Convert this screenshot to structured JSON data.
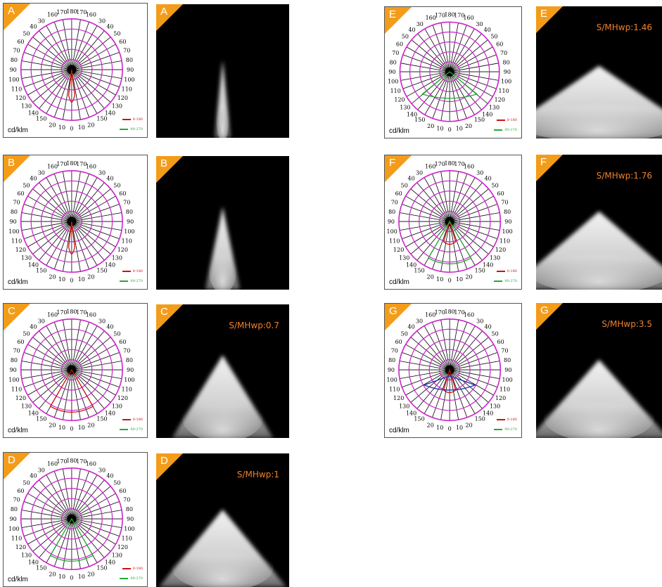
{
  "colors": {
    "tag": "#f39c1a",
    "grid_circle": "#cc22cc",
    "grid_ray": "#000000",
    "curve_0_180": "#cc1111",
    "curve_90_270": "#22aa33",
    "curve_extra": "#2233aa",
    "smh_text": "#f0802a"
  },
  "polar": {
    "unit": "cd/klm",
    "legend_0_180": "0-180",
    "legend_90_270": "90-270",
    "angle_labels_top": [
      "160",
      "170",
      "180",
      "170",
      "160"
    ],
    "angle_labels_left": [
      "150",
      "140",
      "130",
      "120",
      "110",
      "100",
      "90",
      "80",
      "70",
      "60",
      "50",
      "40",
      "30"
    ],
    "angle_labels_right": [
      "150",
      "140",
      "130",
      "120",
      "110",
      "100",
      "90",
      "80",
      "70",
      "60",
      "50",
      "40",
      "30"
    ],
    "angle_labels_bottom": [
      "20",
      "10",
      "0",
      "10",
      "20"
    ]
  },
  "panels": [
    {
      "letter": "A",
      "smh": "",
      "spread": 0.06,
      "length": 0.58,
      "curve_0_180": "narrow",
      "curve_90_270": "none"
    },
    {
      "letter": "B",
      "smh": "",
      "spread": 0.13,
      "length": 0.62,
      "curve_0_180": "narrow",
      "curve_90_270": "none"
    },
    {
      "letter": "C",
      "smh": "S/MHwp:0.7",
      "spread": 0.38,
      "length": 0.62,
      "curve_0_180": "wide",
      "curve_90_270": "none"
    },
    {
      "letter": "D",
      "smh": "S/MHwp:1",
      "spread": 0.48,
      "length": 0.58,
      "curve_0_180": "none",
      "curve_90_270": "wide"
    },
    {
      "letter": "E",
      "smh": "S/MHwp:1.46",
      "spread": 0.85,
      "length": 0.55,
      "curve_0_180": "none",
      "curve_90_270": "fan"
    },
    {
      "letter": "F",
      "smh": "S/MHwp:1.76",
      "spread": 0.72,
      "length": 0.58,
      "curve_0_180": "small",
      "curve_90_270": "wide"
    },
    {
      "letter": "G",
      "smh": "S/MHwp:3.5",
      "spread": 0.55,
      "length": 0.58,
      "curve_0_180": "small",
      "curve_90_270": "flat"
    }
  ]
}
